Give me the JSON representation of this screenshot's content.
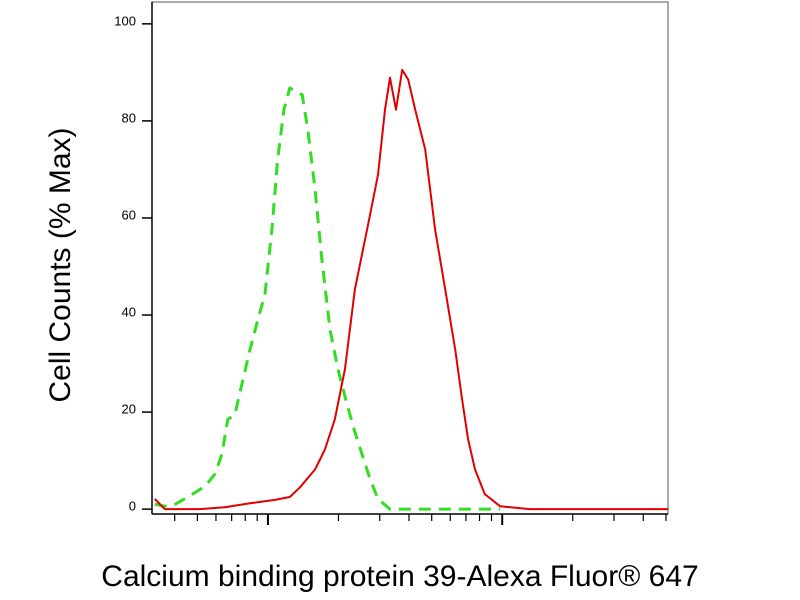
{
  "chart_data": {
    "type": "line",
    "y_label": "Cell Counts (% Max)",
    "x_label": "Calcium binding protein 39-Alexa Fluor® 647",
    "x_scale": "log",
    "xlim": [
      3.2,
      510
    ],
    "xticks": [
      4,
      5,
      6,
      7,
      8,
      9,
      10,
      20,
      30,
      40,
      50,
      60,
      70,
      80,
      90,
      100,
      200,
      300,
      400,
      500
    ],
    "ylim": [
      -1,
      104.5
    ],
    "yticks": [
      0,
      20,
      40,
      60,
      80,
      100
    ],
    "series": [
      {
        "color": "#33dd22",
        "style": "dashed",
        "x": [
          3.29,
          3.63,
          4.01,
          4.64,
          5.38,
          5.94,
          6.36,
          6.74,
          7.23,
          7.82,
          8.38,
          9.06,
          9.71,
          10.4,
          11.0,
          11.7,
          12.4,
          13.2,
          14.0,
          14.8,
          15.9,
          17.0,
          18.4,
          19.9,
          21.5,
          23.3,
          25.2,
          27.3,
          29.5,
          33.2,
          44.7,
          98
        ],
        "values": [
          1.0,
          0.6,
          1.0,
          2.7,
          4.7,
          7.2,
          11.3,
          18.5,
          19.5,
          26.7,
          32.9,
          39.1,
          44.2,
          57.6,
          72,
          82.3,
          86.8,
          86,
          85.4,
          78.2,
          65.8,
          51.4,
          37,
          28.8,
          22.6,
          16.5,
          11.3,
          6.2,
          2.1,
          0,
          0,
          0
        ]
      },
      {
        "color": "#e00000",
        "style": "solid",
        "x": [
          3.29,
          3.63,
          5.11,
          6.55,
          8.38,
          10.7,
          12.4,
          13.7,
          15.9,
          17.5,
          19.3,
          21.3,
          23.5,
          25.2,
          27.3,
          29.5,
          31.6,
          33.2,
          35.2,
          37.4,
          39.7,
          42.5,
          46.9,
          51.7,
          57.1,
          63.0,
          67.4,
          71.5,
          76.5,
          84.3,
          97.8,
          131,
          510
        ],
        "values": [
          2.1,
          0,
          0,
          0.4,
          1.2,
          1.9,
          2.5,
          4.5,
          8.2,
          12.3,
          18.5,
          28.8,
          45.3,
          52.5,
          60.7,
          68.9,
          82.3,
          88.9,
          82.3,
          90.5,
          88.5,
          82.3,
          74.1,
          57.6,
          45.3,
          32.9,
          22.6,
          14.4,
          8.2,
          3.1,
          0.6,
          0,
          0
        ]
      }
    ]
  }
}
